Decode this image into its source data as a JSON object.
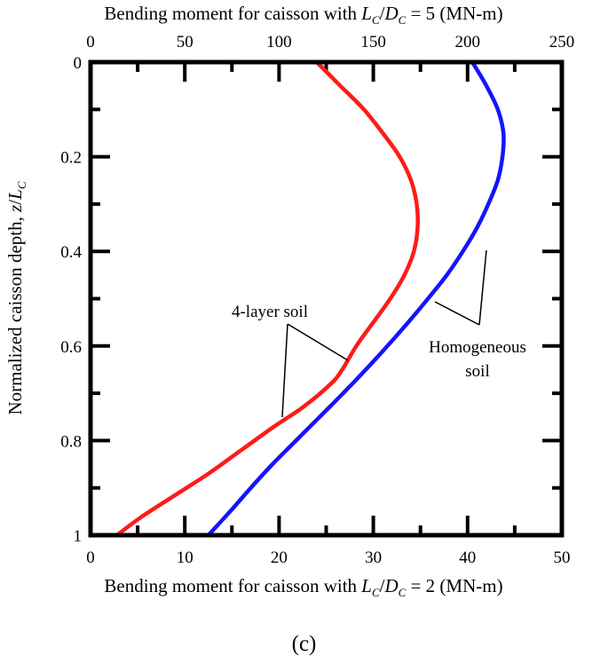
{
  "chart_data": {
    "type": "line",
    "title_top": [
      "Bending moment for caisson with ",
      "L",
      "C",
      "/",
      "D",
      "C",
      " = 5 (MN-m)"
    ],
    "xlabel_bottom": [
      "Bending moment for caisson with ",
      "L",
      "C",
      "/",
      "D",
      "C",
      " = 2 (MN-m)"
    ],
    "ylabel": [
      "Normalized caisson depth, ",
      "z",
      "/",
      "L",
      "C"
    ],
    "x_top": {
      "range": [
        0,
        250
      ],
      "ticks": [
        "0",
        "50",
        "100",
        "150",
        "200",
        "250"
      ]
    },
    "x_bottom": {
      "range": [
        0,
        50
      ],
      "ticks": [
        "0",
        "10",
        "20",
        "30",
        "40",
        "50"
      ]
    },
    "y": {
      "range": [
        0,
        1
      ],
      "inverted": true,
      "ticks": [
        "0",
        "0.2",
        "0.4",
        "0.6",
        "0.8",
        "1"
      ]
    },
    "grid": false,
    "series": [
      {
        "id": "four-layer",
        "color": "#ff1a1a",
        "points": [
          [
            24.0,
            0.0
          ],
          [
            26.5,
            0.05
          ],
          [
            29.0,
            0.1
          ],
          [
            31.0,
            0.15
          ],
          [
            32.8,
            0.2
          ],
          [
            34.0,
            0.25
          ],
          [
            34.6,
            0.3
          ],
          [
            34.7,
            0.35
          ],
          [
            34.3,
            0.4
          ],
          [
            33.3,
            0.45
          ],
          [
            31.8,
            0.5
          ],
          [
            30.0,
            0.55
          ],
          [
            28.2,
            0.6
          ],
          [
            26.7,
            0.65
          ],
          [
            25.5,
            0.68
          ],
          [
            22.5,
            0.73
          ],
          [
            19.5,
            0.77
          ],
          [
            16.0,
            0.82
          ],
          [
            12.5,
            0.87
          ],
          [
            9.0,
            0.915
          ],
          [
            5.5,
            0.96
          ],
          [
            2.8,
            1.0
          ]
        ]
      },
      {
        "id": "homogeneous",
        "color": "#1414ff",
        "points": [
          [
            40.5,
            0.0
          ],
          [
            42.0,
            0.05
          ],
          [
            43.2,
            0.1
          ],
          [
            43.8,
            0.15
          ],
          [
            43.7,
            0.2
          ],
          [
            43.2,
            0.25
          ],
          [
            42.2,
            0.3
          ],
          [
            41.0,
            0.35
          ],
          [
            39.5,
            0.4
          ],
          [
            37.8,
            0.45
          ],
          [
            35.8,
            0.5
          ],
          [
            33.7,
            0.55
          ],
          [
            31.5,
            0.6
          ],
          [
            29.2,
            0.65
          ],
          [
            26.8,
            0.7
          ],
          [
            24.3,
            0.75
          ],
          [
            21.8,
            0.8
          ],
          [
            19.3,
            0.85
          ],
          [
            17.0,
            0.9
          ],
          [
            14.8,
            0.95
          ],
          [
            12.5,
            1.0
          ]
        ]
      }
    ],
    "annotations": [
      {
        "text_lines": [
          "4-layer soil"
        ],
        "color": "#000000"
      },
      {
        "text_lines": [
          "Homogeneous",
          "soil"
        ],
        "color": "#000000"
      }
    ]
  },
  "panel_label": "(c)"
}
